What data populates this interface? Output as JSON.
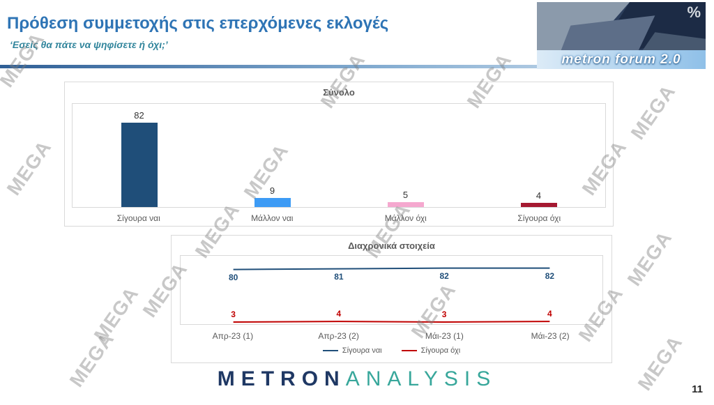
{
  "header": {
    "title": "Πρόθεση συμμετοχής στις επερχόμενες εκλογές",
    "subtitle": "‘Εσείς θα πάτε να ψηφίσετε ή όχι;’",
    "logo": {
      "text": "metron forum 2.0",
      "percent": "%"
    }
  },
  "watermark": {
    "text": "MEGA"
  },
  "chart_data": [
    {
      "type": "bar",
      "title": "Σύνολο",
      "categories": [
        "Σίγουρα ναι",
        "Μάλλον ναι",
        "Μάλλον όχι",
        "Σίγουρα όχι"
      ],
      "values": [
        82,
        9,
        5,
        4
      ],
      "colors": [
        "#1F4E79",
        "#3D9BF5",
        "#F5A8CF",
        "#A51931"
      ],
      "xlabel": "",
      "ylabel": "",
      "ylim": [
        0,
        100
      ],
      "grid": false,
      "legend": false
    },
    {
      "type": "line",
      "title": "Διαχρονικά στοιχεία",
      "x": [
        "Απρ-23 (1)",
        "Απρ-23 (2)",
        "Μάι-23 (1)",
        "Μάι-23 (2)"
      ],
      "series": [
        {
          "name": "Σίγουρα ναι",
          "values": [
            80,
            81,
            82,
            82
          ],
          "color": "#1F4E79"
        },
        {
          "name": "Σίγουρα όχι",
          "values": [
            3,
            4,
            3,
            4
          ],
          "color": "#C00000"
        }
      ],
      "xlabel": "",
      "ylabel": "",
      "ylim": [
        0,
        100
      ],
      "grid": false,
      "legend_position": "bottom"
    }
  ],
  "footer": {
    "brand_metron": "METRON",
    "brand_analysis": "ANALYSIS",
    "page_number": "11"
  }
}
